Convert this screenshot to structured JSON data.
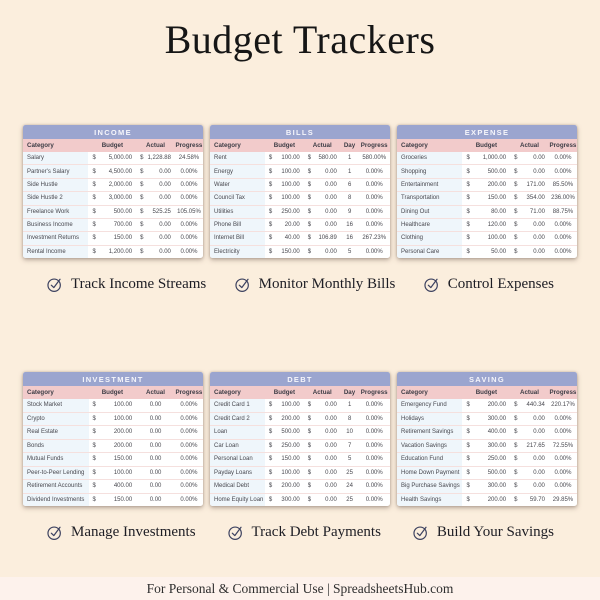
{
  "page": {
    "title": "Budget Trackers",
    "footer": "For Personal & Commercial Use  |  SpreadsheetsHub.com"
  },
  "colors": {
    "background": "#fbeedd",
    "footer_band": "#fdf2ec",
    "table_title_bar": "#9ba5cf",
    "column_header": "#f2cbcb",
    "category_cell": "#eff6fb",
    "check_icon": "#3d4260"
  },
  "features_top": [
    {
      "icon": "check-circle-icon",
      "label": "Track Income Streams"
    },
    {
      "icon": "check-circle-icon",
      "label": "Monitor Monthly Bills"
    },
    {
      "icon": "check-circle-icon",
      "label": "Control Expenses"
    }
  ],
  "features_bottom": [
    {
      "icon": "check-circle-icon",
      "label": "Manage Investments"
    },
    {
      "icon": "check-circle-icon",
      "label": "Track Debt Payments"
    },
    {
      "icon": "check-circle-icon",
      "label": "Build Your Savings"
    }
  ],
  "tables": [
    {
      "title": "INCOME",
      "columns": [
        "Category",
        "Budget",
        "Actual",
        "Progress"
      ],
      "budget_dollar": true,
      "actual_dollar": true,
      "has_day": false,
      "rows": [
        {
          "category": "Salary",
          "budget": "5,000.00",
          "actual": "1,228.88",
          "progress": "24.58%"
        },
        {
          "category": "Partner's Salary",
          "budget": "4,500.00",
          "actual": "0.00",
          "progress": "0.00%"
        },
        {
          "category": "Side Hustle",
          "budget": "2,000.00",
          "actual": "0.00",
          "progress": "0.00%"
        },
        {
          "category": "Side Hustle 2",
          "budget": "3,000.00",
          "actual": "0.00",
          "progress": "0.00%"
        },
        {
          "category": "Freelance Work",
          "budget": "500.00",
          "actual": "525.25",
          "progress": "105.05%"
        },
        {
          "category": "Business Income",
          "budget": "700.00",
          "actual": "0.00",
          "progress": "0.00%"
        },
        {
          "category": "Investment Returns",
          "budget": "150.00",
          "actual": "0.00",
          "progress": "0.00%"
        },
        {
          "category": "Rental Income",
          "budget": "1,200.00",
          "actual": "0.00",
          "progress": "0.00%"
        }
      ]
    },
    {
      "title": "BILLS",
      "columns": [
        "Category",
        "Budget",
        "Actual",
        "Day",
        "Progress"
      ],
      "budget_dollar": true,
      "actual_dollar": true,
      "has_day": true,
      "rows": [
        {
          "category": "Rent",
          "budget": "100.00",
          "actual": "580.00",
          "day": "1",
          "progress": "580.00%"
        },
        {
          "category": "Energy",
          "budget": "100.00",
          "actual": "0.00",
          "day": "1",
          "progress": "0.00%"
        },
        {
          "category": "Water",
          "budget": "100.00",
          "actual": "0.00",
          "day": "6",
          "progress": "0.00%"
        },
        {
          "category": "Council Tax",
          "budget": "100.00",
          "actual": "0.00",
          "day": "8",
          "progress": "0.00%"
        },
        {
          "category": "Utilities",
          "budget": "250.00",
          "actual": "0.00",
          "day": "9",
          "progress": "0.00%"
        },
        {
          "category": "Phone Bill",
          "budget": "20.00",
          "actual": "0.00",
          "day": "16",
          "progress": "0.00%"
        },
        {
          "category": "Internet Bill",
          "budget": "40.00",
          "actual": "106.89",
          "day": "16",
          "progress": "267.23%"
        },
        {
          "category": "Electricity",
          "budget": "150.00",
          "actual": "0.00",
          "day": "5",
          "progress": "0.00%"
        }
      ]
    },
    {
      "title": "EXPENSE",
      "columns": [
        "Category",
        "Budget",
        "Actual",
        "Progress"
      ],
      "budget_dollar": true,
      "actual_dollar": true,
      "has_day": false,
      "rows": [
        {
          "category": "Groceries",
          "budget": "1,000.00",
          "actual": "0.00",
          "progress": "0.00%"
        },
        {
          "category": "Shopping",
          "budget": "500.00",
          "actual": "0.00",
          "progress": "0.00%"
        },
        {
          "category": "Entertainment",
          "budget": "200.00",
          "actual": "171.00",
          "progress": "85.50%"
        },
        {
          "category": "Transportation",
          "budget": "150.00",
          "actual": "354.00",
          "progress": "236.00%"
        },
        {
          "category": "Dining Out",
          "budget": "80.00",
          "actual": "71.00",
          "progress": "88.75%"
        },
        {
          "category": "Healthcare",
          "budget": "120.00",
          "actual": "0.00",
          "progress": "0.00%"
        },
        {
          "category": "Clothing",
          "budget": "100.00",
          "actual": "0.00",
          "progress": "0.00%"
        },
        {
          "category": "Personal Care",
          "budget": "50.00",
          "actual": "0.00",
          "progress": "0.00%"
        }
      ]
    },
    {
      "title": "INVESTMENT",
      "columns": [
        "Category",
        "Budget",
        "Actual",
        "Progress"
      ],
      "budget_dollar": true,
      "actual_dollar": false,
      "has_day": false,
      "rows": [
        {
          "category": "Stock Market",
          "budget": "100.00",
          "actual": "0.00",
          "progress": "0.00%"
        },
        {
          "category": "Crypto",
          "budget": "100.00",
          "actual": "0.00",
          "progress": "0.00%"
        },
        {
          "category": "Real Estate",
          "budget": "200.00",
          "actual": "0.00",
          "progress": "0.00%"
        },
        {
          "category": "Bonds",
          "budget": "200.00",
          "actual": "0.00",
          "progress": "0.00%"
        },
        {
          "category": "Mutual Funds",
          "budget": "150.00",
          "actual": "0.00",
          "progress": "0.00%"
        },
        {
          "category": "Peer-to-Peer Lending",
          "budget": "100.00",
          "actual": "0.00",
          "progress": "0.00%"
        },
        {
          "category": "Retirement Accounts",
          "budget": "400.00",
          "actual": "0.00",
          "progress": "0.00%"
        },
        {
          "category": "Dividend Investments",
          "budget": "150.00",
          "actual": "0.00",
          "progress": "0.00%"
        }
      ]
    },
    {
      "title": "DEBT",
      "columns": [
        "Category",
        "Budget",
        "Actual",
        "Day",
        "Progress"
      ],
      "budget_dollar": true,
      "actual_dollar": true,
      "has_day": true,
      "rows": [
        {
          "category": "Credit Card 1",
          "budget": "100.00",
          "actual": "0.00",
          "day": "1",
          "progress": "0.00%"
        },
        {
          "category": "Credit Card 2",
          "budget": "200.00",
          "actual": "0.00",
          "day": "8",
          "progress": "0.00%"
        },
        {
          "category": "Loan",
          "budget": "500.00",
          "actual": "0.00",
          "day": "10",
          "progress": "0.00%"
        },
        {
          "category": "Car Loan",
          "budget": "250.00",
          "actual": "0.00",
          "day": "7",
          "progress": "0.00%"
        },
        {
          "category": "Personal Loan",
          "budget": "150.00",
          "actual": "0.00",
          "day": "5",
          "progress": "0.00%"
        },
        {
          "category": "Payday Loans",
          "budget": "100.00",
          "actual": "0.00",
          "day": "25",
          "progress": "0.00%"
        },
        {
          "category": "Medical Debt",
          "budget": "200.00",
          "actual": "0.00",
          "day": "24",
          "progress": "0.00%"
        },
        {
          "category": "Home Equity Loan",
          "budget": "300.00",
          "actual": "0.00",
          "day": "25",
          "progress": "0.00%"
        }
      ]
    },
    {
      "title": "SAVING",
      "columns": [
        "Category",
        "Budget",
        "Actual",
        "Progress"
      ],
      "budget_dollar": true,
      "actual_dollar": true,
      "has_day": false,
      "rows": [
        {
          "category": "Emergency Fund",
          "budget": "200.00",
          "actual": "440.34",
          "progress": "220.17%"
        },
        {
          "category": "Holidays",
          "budget": "300.00",
          "actual": "0.00",
          "progress": "0.00%"
        },
        {
          "category": "Retirement Savings",
          "budget": "400.00",
          "actual": "0.00",
          "progress": "0.00%"
        },
        {
          "category": "Vacation Savings",
          "budget": "300.00",
          "actual": "217.65",
          "progress": "72.55%"
        },
        {
          "category": "Education Fund",
          "budget": "250.00",
          "actual": "0.00",
          "progress": "0.00%"
        },
        {
          "category": "Home Down Payment",
          "budget": "500.00",
          "actual": "0.00",
          "progress": "0.00%"
        },
        {
          "category": "Big Purchase Savings",
          "budget": "300.00",
          "actual": "0.00",
          "progress": "0.00%"
        },
        {
          "category": "Health Savings",
          "budget": "200.00",
          "actual": "59.70",
          "progress": "29.85%"
        }
      ]
    }
  ]
}
